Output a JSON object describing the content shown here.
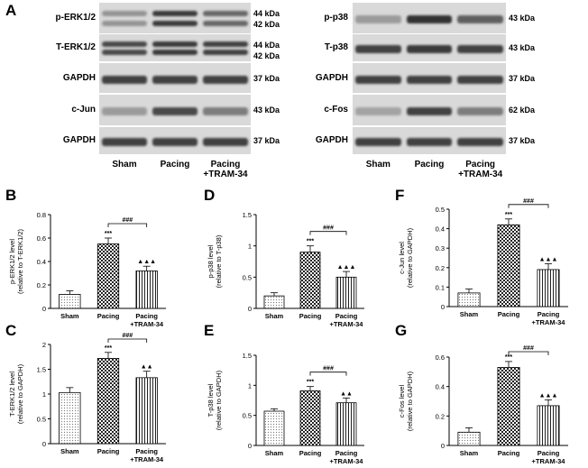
{
  "figure": {
    "panel_a_letter": "A",
    "left_blot": {
      "strips": [
        {
          "label": "p-ERK1/2",
          "kda": [
            "44 kDa",
            "42 kDa"
          ]
        },
        {
          "label": "T-ERK1/2",
          "kda": [
            "44 kDa",
            "42 kDa"
          ]
        },
        {
          "label": "GAPDH",
          "kda": [
            "37 kDa"
          ]
        },
        {
          "label": "c-Jun",
          "kda": [
            "43 kDa"
          ]
        },
        {
          "label": "GAPDH",
          "kda": [
            "37 kDa"
          ]
        }
      ],
      "lanes": [
        "Sham",
        "Pacing",
        "Pacing\n+TRAM-34"
      ]
    },
    "right_blot": {
      "strips": [
        {
          "label": "p-p38",
          "kda": [
            "43 kDa"
          ]
        },
        {
          "label": "T-p38",
          "kda": [
            "43 kDa"
          ]
        },
        {
          "label": "GAPDH",
          "kda": [
            "37 kDa"
          ]
        },
        {
          "label": "c-Fos",
          "kda": [
            "62 kDa"
          ]
        },
        {
          "label": "GAPDH",
          "kda": [
            "37 kDa"
          ]
        }
      ],
      "lanes": [
        "Sham",
        "Pacing",
        "Pacing\n+TRAM-34"
      ]
    },
    "band_intensity": {
      "p-ERK1/2": [
        0.25,
        0.85,
        0.55
      ],
      "T-ERK1/2": [
        0.75,
        0.85,
        0.8
      ],
      "GAPDH": [
        0.8,
        0.8,
        0.8
      ],
      "c-Jun": [
        0.2,
        0.75,
        0.4
      ],
      "p-p38": [
        0.2,
        0.9,
        0.6
      ],
      "T-p38": [
        0.8,
        0.85,
        0.8
      ],
      "c-Fos": [
        0.15,
        0.8,
        0.4
      ]
    }
  },
  "chart_data": [
    {
      "panel": "B",
      "type": "bar",
      "categories": [
        "Sham",
        "Pacing",
        "Pacing\n+TRAM-34"
      ],
      "values": [
        0.12,
        0.55,
        0.32
      ],
      "errors": [
        0.03,
        0.05,
        0.04
      ],
      "ylabel": "p-ERK1/2 level\n(relative to T-ERK1/2)",
      "ylim": [
        0,
        0.8
      ],
      "yticks": [
        0,
        0.2,
        0.4,
        0.6,
        0.8
      ],
      "annotations": [
        "",
        "***",
        "▲▲▲"
      ],
      "bracket": "###"
    },
    {
      "panel": "C",
      "type": "bar",
      "categories": [
        "Sham",
        "Pacing",
        "Pacing\n+TRAM-34"
      ],
      "values": [
        1.03,
        1.72,
        1.33
      ],
      "errors": [
        0.1,
        0.12,
        0.13
      ],
      "ylabel": "T-ERK1/2 level\n(relative to GAPDH)",
      "ylim": [
        0,
        2.0
      ],
      "yticks": [
        0,
        0.5,
        1.0,
        1.5,
        2.0
      ],
      "annotations": [
        "",
        "***",
        "▲▲"
      ],
      "bracket": "###"
    },
    {
      "panel": "D",
      "type": "bar",
      "categories": [
        "Sham",
        "Pacing",
        "Pacing\n+TRAM-34"
      ],
      "values": [
        0.2,
        0.9,
        0.5
      ],
      "errors": [
        0.05,
        0.1,
        0.09
      ],
      "ylabel": "p-p38 level\n(relative to T-p38)",
      "ylim": [
        0,
        1.5
      ],
      "yticks": [
        0,
        0.5,
        1.0,
        1.5
      ],
      "annotations": [
        "",
        "***",
        "▲▲▲"
      ],
      "bracket": "###"
    },
    {
      "panel": "E",
      "type": "bar",
      "categories": [
        "Sham",
        "Pacing",
        "Pacing\n+TRAM-34"
      ],
      "values": [
        0.57,
        0.91,
        0.71
      ],
      "errors": [
        0.04,
        0.07,
        0.08
      ],
      "ylabel": "T-p38 level\n(relative to GAPDH)",
      "ylim": [
        0,
        1.5
      ],
      "yticks": [
        0,
        0.5,
        1.0,
        1.5
      ],
      "annotations": [
        "",
        "***",
        "▲▲"
      ],
      "bracket": "###"
    },
    {
      "panel": "F",
      "type": "bar",
      "categories": [
        "Sham",
        "Pacing",
        "Pacing\n+TRAM-34"
      ],
      "values": [
        0.07,
        0.42,
        0.19
      ],
      "errors": [
        0.02,
        0.03,
        0.03
      ],
      "ylabel": "c-Jun level\n(relative to GAPDH)",
      "ylim": [
        0,
        0.5
      ],
      "yticks": [
        0,
        0.1,
        0.2,
        0.3,
        0.4,
        0.5
      ],
      "annotations": [
        "",
        "***",
        "▲▲▲"
      ],
      "bracket": "###"
    },
    {
      "panel": "G",
      "type": "bar",
      "categories": [
        "Sham",
        "Pacing",
        "Pacing\n+TRAM-34"
      ],
      "values": [
        0.09,
        0.53,
        0.27
      ],
      "errors": [
        0.03,
        0.04,
        0.04
      ],
      "ylabel": "c-Fos level\n(relative to GAPDH)",
      "ylim": [
        0,
        0.6
      ],
      "yticks": [
        0,
        0.2,
        0.4,
        0.6
      ],
      "annotations": [
        "",
        "***",
        "▲▲▲"
      ],
      "bracket": "###"
    }
  ]
}
